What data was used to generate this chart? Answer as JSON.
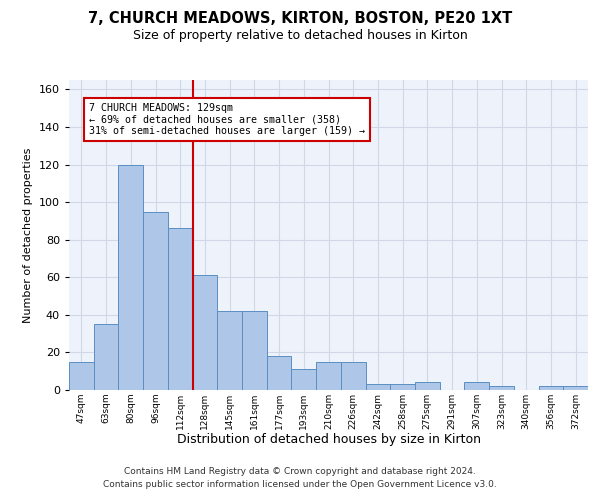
{
  "title1": "7, CHURCH MEADOWS, KIRTON, BOSTON, PE20 1XT",
  "title2": "Size of property relative to detached houses in Kirton",
  "xlabel": "Distribution of detached houses by size in Kirton",
  "ylabel": "Number of detached properties",
  "bar_labels": [
    "47sqm",
    "63sqm",
    "80sqm",
    "96sqm",
    "112sqm",
    "128sqm",
    "145sqm",
    "161sqm",
    "177sqm",
    "193sqm",
    "210sqm",
    "226sqm",
    "242sqm",
    "258sqm",
    "275sqm",
    "291sqm",
    "307sqm",
    "323sqm",
    "340sqm",
    "356sqm",
    "372sqm"
  ],
  "bar_values": [
    15,
    35,
    120,
    95,
    86,
    61,
    42,
    42,
    18,
    11,
    15,
    15,
    3,
    3,
    4,
    0,
    4,
    2,
    0,
    2,
    2
  ],
  "bar_color": "#aec6e8",
  "bar_edge_color": "#5a8fc2",
  "grid_color": "#d0d8e8",
  "background_color": "#eef2fa",
  "red_line_index": 5,
  "annotation_line1": "7 CHURCH MEADOWS: 129sqm",
  "annotation_line2": "← 69% of detached houses are smaller (358)",
  "annotation_line3": "31% of semi-detached houses are larger (159) →",
  "annotation_box_color": "#ffffff",
  "annotation_box_edge": "#cc0000",
  "footer1": "Contains HM Land Registry data © Crown copyright and database right 2024.",
  "footer2": "Contains public sector information licensed under the Open Government Licence v3.0.",
  "ylim": [
    0,
    165
  ],
  "yticks": [
    0,
    20,
    40,
    60,
    80,
    100,
    120,
    140,
    160
  ]
}
